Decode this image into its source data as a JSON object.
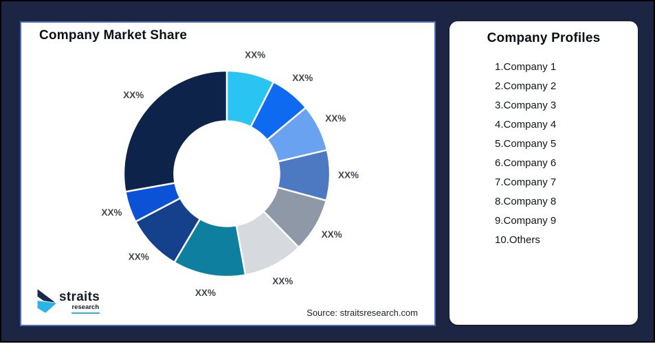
{
  "canvas": {
    "background": "#1C2642",
    "outer_border": "#000000"
  },
  "chart_card": {
    "title": "Company Market Share",
    "border_color": "#4A6FC9",
    "source_note": "Source: straitsresearch.com"
  },
  "logo": {
    "brand": "straits",
    "sub_brand": "research",
    "mark_navy": "#16294E",
    "mark_cyan": "#2CB3E8"
  },
  "chart_data": {
    "type": "pie",
    "variant": "donut",
    "title": "Company Market Share",
    "start_angle_deg": 0,
    "direction": "clockwise",
    "inner_radius_ratio": 0.51,
    "gap_color": "#FFFFFF",
    "label_text_color": "#3F4550",
    "labels_masked": true,
    "segments": [
      {
        "label": "XX%",
        "value": 7.5,
        "color": "#29C4F2"
      },
      {
        "label": "XX%",
        "value": 6.4,
        "color": "#0E6AF0"
      },
      {
        "label": "XX%",
        "value": 7.4,
        "color": "#6AA2F2"
      },
      {
        "label": "XX%",
        "value": 7.9,
        "color": "#4D78C2"
      },
      {
        "label": "XX%",
        "value": 8.5,
        "color": "#8F98A6"
      },
      {
        "label": "XX%",
        "value": 9.4,
        "color": "#D6D9DE"
      },
      {
        "label": "XX%",
        "value": 11.4,
        "color": "#0E7F9F"
      },
      {
        "label": "XX%",
        "value": 8.8,
        "color": "#15418C"
      },
      {
        "label": "XX%",
        "value": 4.9,
        "color": "#0C52D6"
      },
      {
        "label": "XX%",
        "value": 27.8,
        "color": "#0D2349"
      }
    ]
  },
  "profiles_card": {
    "title": "Company Profiles",
    "items": [
      "1.Company 1",
      "2.Company 2",
      "3.Company 3",
      "4.Company 4",
      "5.Company 5",
      "6.Company 6",
      "7.Company 7",
      "8.Company 8",
      "9.Company 9",
      "10.Others"
    ]
  }
}
